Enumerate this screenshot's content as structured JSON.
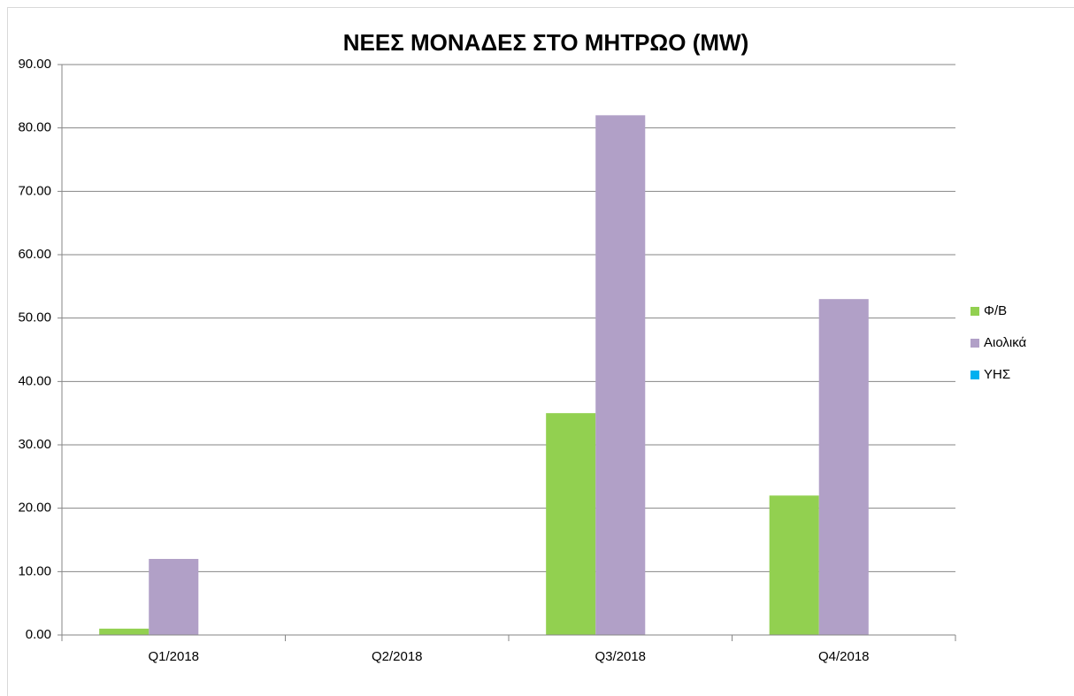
{
  "chart_data": {
    "type": "bar",
    "title": "ΝΕΕΣ ΜΟΝΑΔΕΣ ΣΤΟ ΜΗΤΡΩΟ (MW)",
    "categories": [
      "Q1/2018",
      "Q2/2018",
      "Q3/2018",
      "Q4/2018"
    ],
    "series": [
      {
        "name": "Φ/Β",
        "color": "#92d050",
        "values": [
          1,
          0,
          35,
          22
        ]
      },
      {
        "name": "Αιολικά",
        "color": "#b1a0c7",
        "values": [
          12,
          0,
          82,
          53
        ]
      },
      {
        "name": "ΥΗΣ",
        "color": "#00b0f0",
        "values": [
          0,
          0,
          0,
          0
        ]
      }
    ],
    "ylim": [
      0,
      90
    ],
    "yticks": [
      {
        "value": 0,
        "label": "0.00"
      },
      {
        "value": 10,
        "label": "10.00"
      },
      {
        "value": 20,
        "label": "20.00"
      },
      {
        "value": 30,
        "label": "30.00"
      },
      {
        "value": 40,
        "label": "40.00"
      },
      {
        "value": 50,
        "label": "50.00"
      },
      {
        "value": 60,
        "label": "60.00"
      },
      {
        "value": 70,
        "label": "70.00"
      },
      {
        "value": 80,
        "label": "80.00"
      },
      {
        "value": 90,
        "label": "90.00"
      }
    ],
    "grid": true,
    "legend": "right"
  }
}
